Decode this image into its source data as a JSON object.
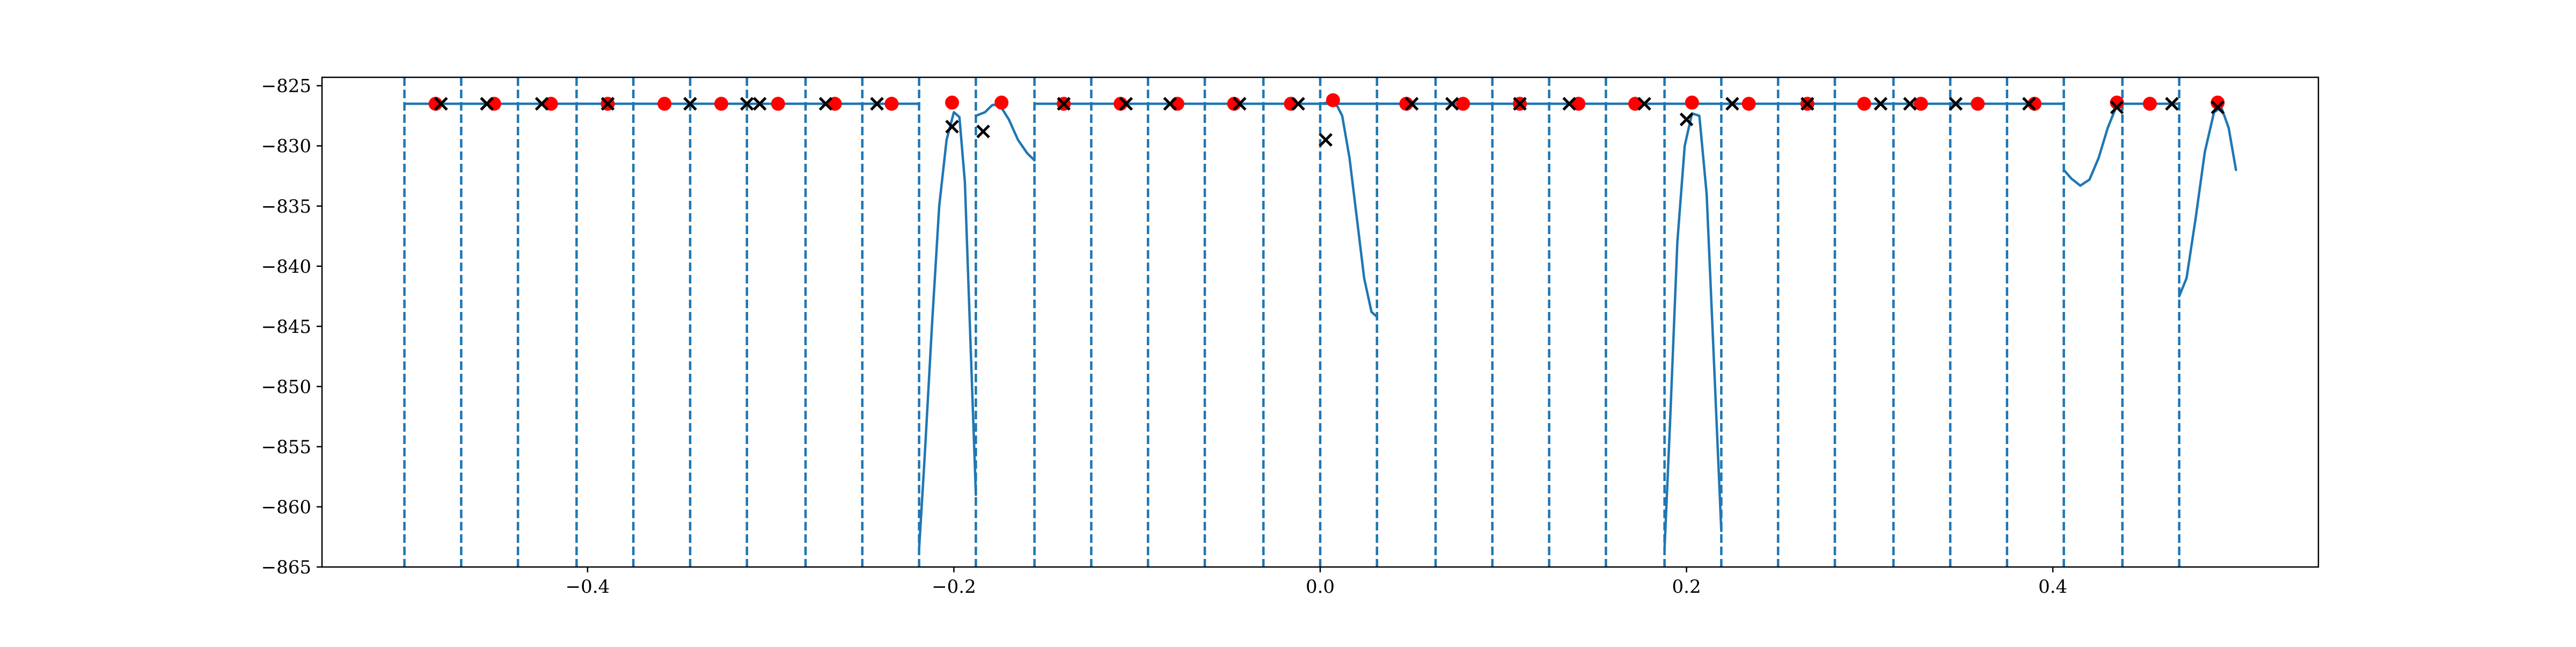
{
  "chart_data": {
    "type": "line",
    "title": "",
    "xlabel": "",
    "ylabel": "",
    "xlim": [
      -0.545,
      0.545
    ],
    "ylim": [
      -865,
      -824.3
    ],
    "xticks": [
      -0.4,
      -0.2,
      0.0,
      0.2,
      0.4
    ],
    "xtick_labels": [
      "−0.4",
      "−0.2",
      "0.0",
      "0.2",
      "0.4"
    ],
    "yticks": [
      -825,
      -830,
      -835,
      -840,
      -845,
      -850,
      -855,
      -860,
      -865
    ],
    "ytick_labels": [
      "−825",
      "−830",
      "−835",
      "−840",
      "−845",
      "−850",
      "−855",
      "−860",
      "−865"
    ],
    "grid": false,
    "legend": "none",
    "colors": {
      "line": "#1f77b4",
      "boundaries": "#1f77b4",
      "red_points": "#ff0000",
      "x_markers": "#000000"
    },
    "boundaries": [
      -0.5,
      -0.469,
      -0.438,
      -0.406,
      -0.375,
      -0.344,
      -0.313,
      -0.281,
      -0.25,
      -0.219,
      -0.188,
      -0.156,
      -0.125,
      -0.094,
      -0.063,
      -0.031,
      0.0,
      0.031,
      0.063,
      0.094,
      0.125,
      0.156,
      0.188,
      0.219,
      0.25,
      0.281,
      0.313,
      0.344,
      0.375,
      0.406,
      0.438,
      0.469
    ],
    "line_segments": [
      [
        [
          -0.5,
          -826.5
        ],
        [
          -0.219,
          -826.5
        ]
      ],
      [
        [
          -0.219,
          -863.5
        ],
        [
          -0.216,
          -856
        ],
        [
          -0.212,
          -845
        ],
        [
          -0.208,
          -835
        ],
        [
          -0.204,
          -829.5
        ],
        [
          -0.2,
          -827.2
        ],
        [
          -0.197,
          -827.6
        ],
        [
          -0.194,
          -833
        ],
        [
          -0.191,
          -846
        ],
        [
          -0.188,
          -859
        ]
      ],
      [
        [
          -0.188,
          -827.5
        ],
        [
          -0.183,
          -827.2
        ],
        [
          -0.179,
          -826.6
        ],
        [
          -0.175,
          -826.6
        ],
        [
          -0.17,
          -827.8
        ],
        [
          -0.165,
          -829.5
        ],
        [
          -0.16,
          -830.6
        ],
        [
          -0.156,
          -831.2
        ]
      ],
      [
        [
          -0.156,
          -826.5
        ],
        [
          0.031,
          -826.5
        ]
      ],
      [
        [
          0.0,
          -826.5
        ],
        [
          0.004,
          -826.4
        ],
        [
          0.008,
          -826.3
        ],
        [
          0.012,
          -827.5
        ],
        [
          0.016,
          -831
        ],
        [
          0.02,
          -836
        ],
        [
          0.024,
          -841
        ],
        [
          0.028,
          -843.8
        ],
        [
          0.031,
          -844.2
        ]
      ],
      [
        [
          0.031,
          -826.5
        ],
        [
          0.219,
          -826.5
        ]
      ],
      [
        [
          0.188,
          -863.5
        ],
        [
          0.191,
          -853
        ],
        [
          0.195,
          -838
        ],
        [
          0.199,
          -830
        ],
        [
          0.203,
          -827.3
        ],
        [
          0.207,
          -827.5
        ],
        [
          0.211,
          -834
        ],
        [
          0.215,
          -848
        ],
        [
          0.219,
          -862
        ]
      ],
      [
        [
          0.219,
          -826.5
        ],
        [
          0.406,
          -826.5
        ]
      ],
      [
        [
          0.406,
          -832
        ],
        [
          0.41,
          -832.7
        ],
        [
          0.415,
          -833.3
        ],
        [
          0.42,
          -832.8
        ],
        [
          0.425,
          -831
        ],
        [
          0.43,
          -828.5
        ],
        [
          0.435,
          -826.6
        ],
        [
          0.438,
          -826.5
        ]
      ],
      [
        [
          0.438,
          -826.5
        ],
        [
          0.469,
          -826.5
        ]
      ],
      [
        [
          0.469,
          -842.5
        ],
        [
          0.473,
          -841
        ],
        [
          0.478,
          -836
        ],
        [
          0.483,
          -830.5
        ],
        [
          0.488,
          -827.2
        ],
        [
          0.492,
          -826.8
        ],
        [
          0.496,
          -828.5
        ],
        [
          0.5,
          -832
        ]
      ]
    ],
    "red_points": [
      [
        -0.483,
        -826.5
      ],
      [
        -0.451,
        -826.5
      ],
      [
        -0.42,
        -826.5
      ],
      [
        -0.389,
        -826.5
      ],
      [
        -0.358,
        -826.5
      ],
      [
        -0.327,
        -826.5
      ],
      [
        -0.296,
        -826.5
      ],
      [
        -0.265,
        -826.5
      ],
      [
        -0.234,
        -826.5
      ],
      [
        -0.201,
        -826.4
      ],
      [
        -0.174,
        -826.4
      ],
      [
        -0.14,
        -826.5
      ],
      [
        -0.109,
        -826.5
      ],
      [
        -0.078,
        -826.5
      ],
      [
        -0.047,
        -826.5
      ],
      [
        -0.016,
        -826.5
      ],
      [
        0.007,
        -826.2
      ],
      [
        0.047,
        -826.5
      ],
      [
        0.078,
        -826.5
      ],
      [
        0.109,
        -826.5
      ],
      [
        0.141,
        -826.5
      ],
      [
        0.172,
        -826.5
      ],
      [
        0.203,
        -826.4
      ],
      [
        0.234,
        -826.5
      ],
      [
        0.266,
        -826.5
      ],
      [
        0.297,
        -826.5
      ],
      [
        0.328,
        -826.5
      ],
      [
        0.359,
        -826.5
      ],
      [
        0.39,
        -826.5
      ],
      [
        0.435,
        -826.4
      ],
      [
        0.453,
        -826.5
      ],
      [
        0.49,
        -826.4
      ]
    ],
    "x_markers": [
      [
        -0.48,
        -826.5
      ],
      [
        -0.455,
        -826.5
      ],
      [
        -0.425,
        -826.5
      ],
      [
        -0.389,
        -826.5
      ],
      [
        -0.344,
        -826.5
      ],
      [
        -0.313,
        -826.5
      ],
      [
        -0.306,
        -826.5
      ],
      [
        -0.27,
        -826.5
      ],
      [
        -0.242,
        -826.5
      ],
      [
        -0.201,
        -828.4
      ],
      [
        -0.184,
        -828.8
      ],
      [
        -0.14,
        -826.5
      ],
      [
        -0.106,
        -826.5
      ],
      [
        -0.082,
        -826.5
      ],
      [
        -0.044,
        -826.5
      ],
      [
        -0.012,
        -826.5
      ],
      [
        0.003,
        -829.5
      ],
      [
        0.05,
        -826.5
      ],
      [
        0.072,
        -826.5
      ],
      [
        0.109,
        -826.5
      ],
      [
        0.136,
        -826.5
      ],
      [
        0.177,
        -826.5
      ],
      [
        0.2,
        -827.8
      ],
      [
        0.225,
        -826.5
      ],
      [
        0.266,
        -826.5
      ],
      [
        0.306,
        -826.5
      ],
      [
        0.322,
        -826.5
      ],
      [
        0.347,
        -826.5
      ],
      [
        0.387,
        -826.5
      ],
      [
        0.435,
        -826.8
      ],
      [
        0.465,
        -826.5
      ],
      [
        0.49,
        -826.8
      ]
    ]
  }
}
